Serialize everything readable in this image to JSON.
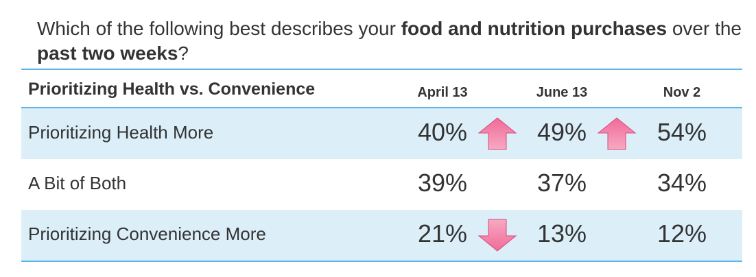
{
  "question": {
    "part1": "Which of the following best describes your ",
    "bold1": "food and nutrition purchases",
    "part2": " over the ",
    "bold2": "past two weeks",
    "part3": "?"
  },
  "chart_data": {
    "type": "table",
    "title": "Prioritizing Health vs. Convenience",
    "columns": [
      "April 13",
      "June 13",
      "Nov 2"
    ],
    "rows": [
      {
        "label": "Prioritizing Health More",
        "values": [
          "40%",
          "49%",
          "54%"
        ],
        "changes": [
          "up",
          "up"
        ]
      },
      {
        "label": "A Bit of Both",
        "values": [
          "39%",
          "37%",
          "34%"
        ],
        "changes": [
          "none",
          "none"
        ]
      },
      {
        "label": "Prioritizing Convenience More",
        "values": [
          "21%",
          "13%",
          "12%"
        ],
        "changes": [
          "down",
          "none"
        ]
      }
    ]
  },
  "colors": {
    "accent_line": "#5bb7e6",
    "row_shade": "#dceff9",
    "arrow_pink": "#e8578a"
  }
}
